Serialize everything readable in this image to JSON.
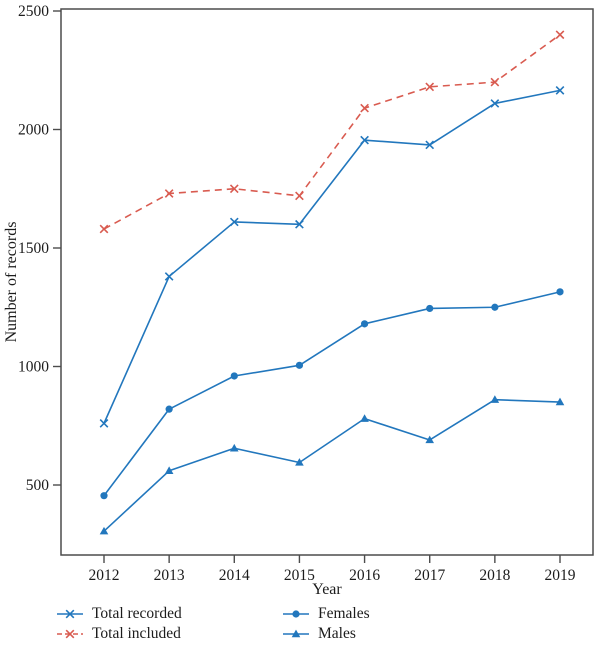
{
  "figure": {
    "type": "line-chart-figure"
  },
  "chart_data": {
    "type": "line",
    "title": "",
    "xlabel": "Year",
    "ylabel": "Number of records",
    "x": [
      2012,
      2013,
      2014,
      2015,
      2016,
      2017,
      2018,
      2019
    ],
    "xticks": [
      "2012",
      "2013",
      "2014",
      "2015",
      "2016",
      "2017",
      "2018",
      "2019"
    ],
    "yticks": [
      500,
      1000,
      1500,
      2000,
      2500
    ],
    "ylim": [
      200,
      2500
    ],
    "grid": false,
    "legend_position": "below-two-columns",
    "series": [
      {
        "name": "Total recorded",
        "color": "#2277bd",
        "line": "solid",
        "marker": "x",
        "values": [
          760,
          1380,
          1610,
          1600,
          1955,
          1935,
          2110,
          2165
        ]
      },
      {
        "name": "Total included",
        "color": "#d95b50",
        "line": "dashed",
        "marker": "x",
        "values": [
          1580,
          1730,
          1750,
          1720,
          2090,
          2180,
          2200,
          2400
        ]
      },
      {
        "name": "Females",
        "color": "#2277bd",
        "line": "solid",
        "marker": "circle",
        "values": [
          455,
          820,
          960,
          1005,
          1180,
          1245,
          1250,
          1315
        ]
      },
      {
        "name": "Males",
        "color": "#2277bd",
        "line": "solid",
        "marker": "triangle",
        "values": [
          305,
          560,
          655,
          595,
          780,
          690,
          860,
          850
        ]
      }
    ],
    "axis_color": "#4c4c4c",
    "text_color": "#1c1c1c"
  },
  "legend": {
    "column1": [
      "Total recorded",
      "Total included"
    ],
    "column2": [
      "Females",
      "Males"
    ]
  }
}
